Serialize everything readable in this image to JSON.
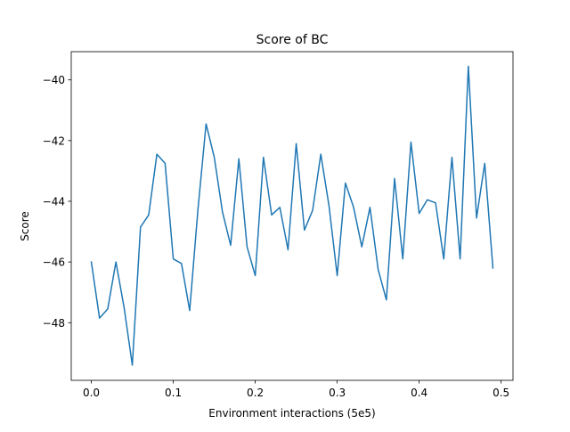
{
  "chart_data": {
    "type": "line",
    "title": "Score of BC",
    "xlabel": "Environment interactions (5e5)",
    "ylabel": "Score",
    "xlim": [
      -0.0245,
      0.5145
    ],
    "ylim": [
      -49.9,
      -39.07
    ],
    "xticks": [
      0.0,
      0.1,
      0.2,
      0.3,
      0.4,
      0.5
    ],
    "xtick_labels": [
      "0.0",
      "0.1",
      "0.2",
      "0.3",
      "0.4",
      "0.5"
    ],
    "yticks": [
      -48,
      -46,
      -44,
      -42,
      -40
    ],
    "ytick_labels": [
      "−48",
      "−46",
      "−44",
      "−42",
      "−40"
    ],
    "grid": false,
    "color": "#1f77b4",
    "series": [
      {
        "x": [
          0.0,
          0.01,
          0.02,
          0.03,
          0.04,
          0.05,
          0.06,
          0.07,
          0.08,
          0.09,
          0.1,
          0.11,
          0.12,
          0.13,
          0.14,
          0.15,
          0.16,
          0.17,
          0.18,
          0.19,
          0.2,
          0.21,
          0.22,
          0.23,
          0.24,
          0.25,
          0.26,
          0.27,
          0.28,
          0.29,
          0.3,
          0.31,
          0.32,
          0.33,
          0.34,
          0.35,
          0.36,
          0.37,
          0.38,
          0.39,
          0.4,
          0.41,
          0.42,
          0.43,
          0.44,
          0.45,
          0.46,
          0.47,
          0.48,
          0.49
        ],
        "values": [
          -46.0,
          -47.85,
          -47.55,
          -46.0,
          -47.5,
          -49.4,
          -44.85,
          -44.45,
          -42.45,
          -42.75,
          -45.9,
          -46.05,
          -47.6,
          -44.3,
          -41.45,
          -42.55,
          -44.35,
          -45.45,
          -42.6,
          -45.5,
          -46.45,
          -42.55,
          -44.45,
          -44.2,
          -45.6,
          -42.1,
          -44.95,
          -44.3,
          -42.45,
          -44.15,
          -46.45,
          -43.4,
          -44.2,
          -45.5,
          -44.2,
          -46.25,
          -47.25,
          -43.25,
          -45.9,
          -42.05,
          -44.4,
          -43.95,
          -44.05,
          -45.9,
          -42.55,
          -45.9,
          -39.55,
          -44.55,
          -42.75,
          -46.2
        ]
      }
    ]
  }
}
